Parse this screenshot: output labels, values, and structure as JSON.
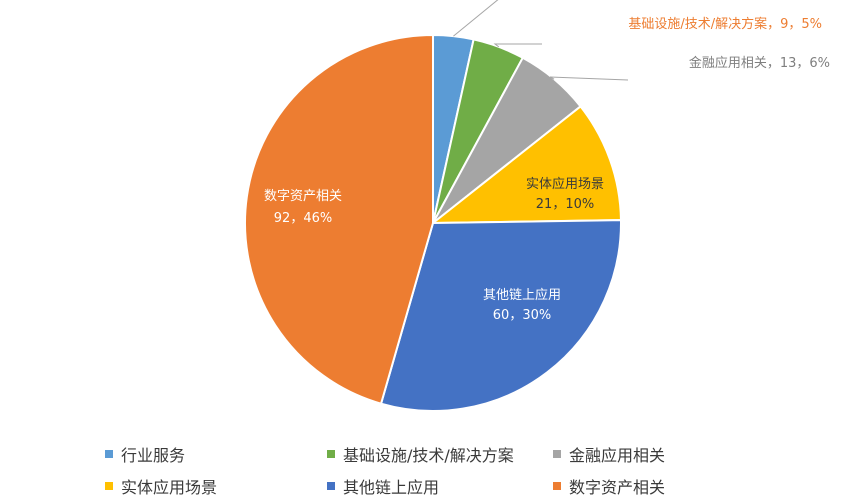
{
  "chart_data": {
    "type": "pie",
    "slices": [
      {
        "name": "行业服务",
        "value": 7,
        "percent": "3%",
        "color": "#5b9bd5",
        "label": ""
      },
      {
        "name": "基础设施/技术/解决方案",
        "value": 9,
        "percent": "5%",
        "color": "#70ad47",
        "label": "基础设施/技术/解决方案，9，5%"
      },
      {
        "name": "金融应用相关",
        "value": 13,
        "percent": "6%",
        "color": "#a5a5a5",
        "label": "金融应用相关，13，6%"
      },
      {
        "name": "实体应用场景",
        "value": 21,
        "percent": "10%",
        "color": "#ffc000",
        "label_line1": "实体应用场景",
        "label_line2": "21，10%"
      },
      {
        "name": "其他链上应用",
        "value": 60,
        "percent": "30%",
        "color": "#4472c4",
        "label_line1": "其他链上应用",
        "label_line2": "60，30%"
      },
      {
        "name": "数字资产相关",
        "value": 92,
        "percent": "46%",
        "color": "#ed7d31",
        "label_line1": "数字资产相关",
        "label_line2": "92，46%"
      }
    ],
    "legend": [
      "行业服务",
      "基础设施/技术/解决方案",
      "金融应用相关",
      "实体应用场景",
      "其他链上应用",
      "数字资产相关"
    ]
  }
}
